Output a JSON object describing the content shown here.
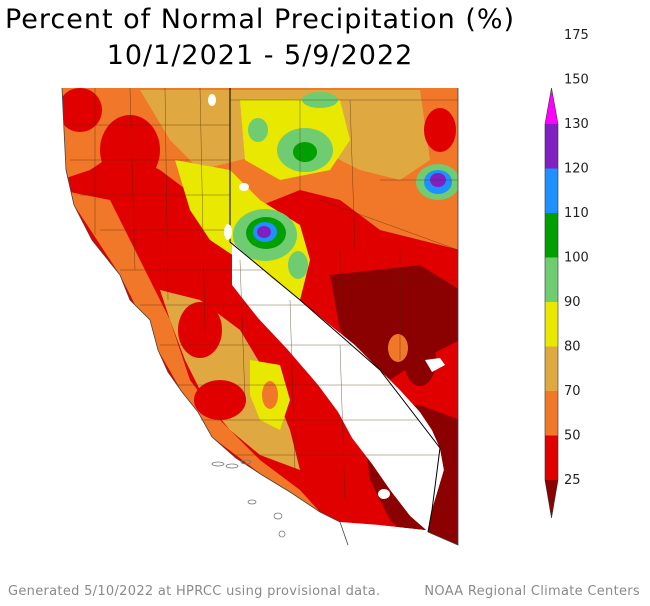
{
  "title": {
    "line1": "Percent of Normal Precipitation (%)",
    "line2": "10/1/2021 - 5/9/2022"
  },
  "legend": {
    "colors": [
      "#8b0000",
      "#e00000",
      "#f07828",
      "#e0a840",
      "#e8e800",
      "#70cc70",
      "#00a000",
      "#1e90ff",
      "#8020c0",
      "#ff00ff"
    ],
    "labels": [
      "25",
      "50",
      "70",
      "80",
      "90",
      "100",
      "110",
      "120",
      "130",
      "150",
      "175"
    ]
  },
  "footer": {
    "left": "Generated 5/10/2022 at HPRCC using provisional data.",
    "right": "NOAA Regional Climate Centers"
  }
}
